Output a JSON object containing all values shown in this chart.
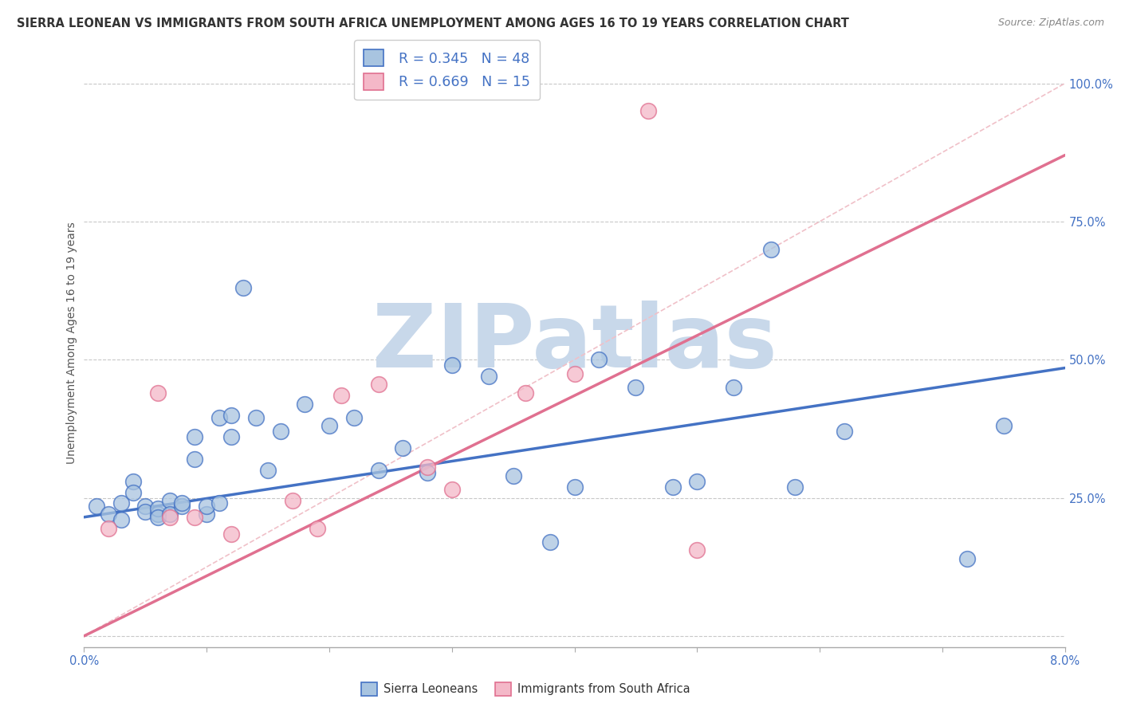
{
  "title": "SIERRA LEONEAN VS IMMIGRANTS FROM SOUTH AFRICA UNEMPLOYMENT AMONG AGES 16 TO 19 YEARS CORRELATION CHART",
  "source": "Source: ZipAtlas.com",
  "ylabel": "Unemployment Among Ages 16 to 19 years",
  "y_ticks": [
    0.0,
    0.25,
    0.5,
    0.75,
    1.0
  ],
  "y_tick_labels": [
    "",
    "25.0%",
    "50.0%",
    "75.0%",
    "100.0%"
  ],
  "xmin": 0.0,
  "xmax": 0.08,
  "ymin": -0.02,
  "ymax": 1.08,
  "legend_r1": "R = 0.345",
  "legend_n1": "N = 48",
  "legend_r2": "R = 0.669",
  "legend_n2": "N = 15",
  "color_blue": "#a8c4e0",
  "color_pink": "#f4b8c8",
  "color_blue_dark": "#4472c4",
  "color_pink_dark": "#e07090",
  "color_line_blue": "#4472c4",
  "color_line_pink": "#e07090",
  "color_diag": "#f0c0c8",
  "watermark_color": "#c8d8ea",
  "blue_scatter_x": [
    0.001,
    0.002,
    0.003,
    0.003,
    0.004,
    0.004,
    0.005,
    0.005,
    0.006,
    0.006,
    0.006,
    0.007,
    0.007,
    0.008,
    0.008,
    0.009,
    0.009,
    0.01,
    0.01,
    0.011,
    0.011,
    0.012,
    0.012,
    0.013,
    0.014,
    0.015,
    0.016,
    0.018,
    0.02,
    0.022,
    0.024,
    0.026,
    0.028,
    0.03,
    0.033,
    0.035,
    0.038,
    0.04,
    0.042,
    0.045,
    0.048,
    0.05,
    0.053,
    0.056,
    0.058,
    0.062,
    0.072,
    0.075
  ],
  "blue_scatter_y": [
    0.235,
    0.22,
    0.21,
    0.24,
    0.28,
    0.26,
    0.235,
    0.225,
    0.22,
    0.23,
    0.215,
    0.245,
    0.22,
    0.235,
    0.24,
    0.32,
    0.36,
    0.22,
    0.235,
    0.24,
    0.395,
    0.36,
    0.4,
    0.63,
    0.395,
    0.3,
    0.37,
    0.42,
    0.38,
    0.395,
    0.3,
    0.34,
    0.295,
    0.49,
    0.47,
    0.29,
    0.17,
    0.27,
    0.5,
    0.45,
    0.27,
    0.28,
    0.45,
    0.7,
    0.27,
    0.37,
    0.14,
    0.38
  ],
  "pink_scatter_x": [
    0.002,
    0.006,
    0.007,
    0.009,
    0.012,
    0.017,
    0.019,
    0.021,
    0.024,
    0.028,
    0.03,
    0.036,
    0.04,
    0.046,
    0.05
  ],
  "pink_scatter_y": [
    0.195,
    0.44,
    0.215,
    0.215,
    0.185,
    0.245,
    0.195,
    0.435,
    0.455,
    0.305,
    0.265,
    0.44,
    0.475,
    0.95,
    0.155
  ],
  "blue_line_x": [
    0.0,
    0.08
  ],
  "blue_line_y": [
    0.215,
    0.485
  ],
  "pink_line_x": [
    0.0,
    0.08
  ],
  "pink_line_y": [
    0.0,
    0.87
  ],
  "diag_line_x": [
    0.0,
    0.08
  ],
  "diag_line_y": [
    0.0,
    1.0
  ]
}
